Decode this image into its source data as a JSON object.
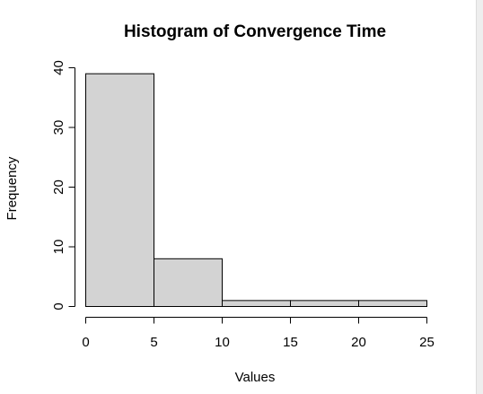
{
  "chart_data": {
    "type": "bar",
    "title": "Histogram of Convergence Time",
    "xlabel": "Values",
    "ylabel": "Frequency",
    "bins": [
      {
        "x0": 0,
        "x1": 5,
        "count": 39
      },
      {
        "x0": 5,
        "x1": 10,
        "count": 8
      },
      {
        "x0": 10,
        "x1": 15,
        "count": 1
      },
      {
        "x0": 15,
        "x1": 20,
        "count": 1
      },
      {
        "x0": 20,
        "x1": 25,
        "count": 1
      }
    ],
    "xticks": [
      0,
      5,
      10,
      15,
      20,
      25
    ],
    "yticks": [
      0,
      10,
      20,
      30,
      40
    ],
    "xlim": [
      0,
      25
    ],
    "ylim": [
      0,
      40
    ],
    "grid": false,
    "colors": {
      "bar_fill": "#d3d3d3",
      "bar_stroke": "#000000"
    }
  }
}
